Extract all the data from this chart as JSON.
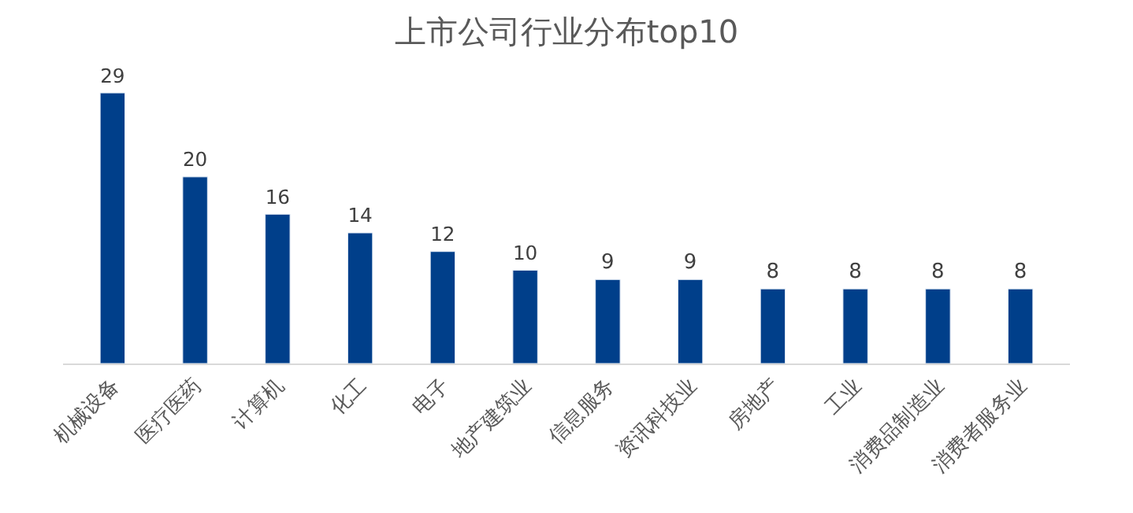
{
  "chart_data": {
    "type": "bar",
    "title": "上市公司行业分布top10",
    "categories": [
      "机械设备",
      "医疗医药",
      "计算机",
      "化工",
      "电子",
      "地产建筑业",
      "信息服务",
      "资讯科技业",
      "房地产",
      "工业",
      "消费品制造业",
      "消费者服务业"
    ],
    "values": [
      29,
      20,
      16,
      14,
      12,
      10,
      9,
      9,
      8,
      8,
      8,
      8
    ],
    "color": "#003f8a",
    "data_labels": true,
    "tick_labels": "x"
  }
}
